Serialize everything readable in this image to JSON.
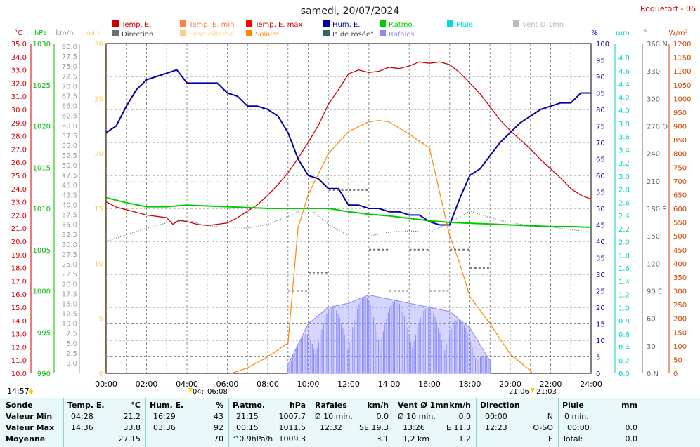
{
  "title": "samedi, 20/07/2024",
  "station": "Roquefort - 06",
  "legend": [
    {
      "label": "Temp. E.",
      "color": "#cc0000"
    },
    {
      "label": "Temp. E. min",
      "color": "#ff8040"
    },
    {
      "label": "Temp. E. max",
      "color": "#ff0000"
    },
    {
      "label": "Hum. E.",
      "color": "#0000aa"
    },
    {
      "label": "P.atmo.",
      "color": "#00cc00"
    },
    {
      "label": "Pluie",
      "color": "#00dddd"
    },
    {
      "label": "Vent Ø 1mn",
      "color": "#bbbbbb"
    },
    {
      "label": "Direction",
      "color": "#707070"
    },
    {
      "label": "Ensoleilleme",
      "color": "#ffcc88"
    },
    {
      "label": "Solaire",
      "color": "#ff8800"
    },
    {
      "label": "P. de rosée°",
      "color": "#336666"
    },
    {
      "label": "Rafales",
      "color": "#8888ff"
    }
  ],
  "axes": {
    "temp": {
      "unit": "°C",
      "color": "#cc0000",
      "ticks": [
        "35.0",
        "34.0",
        "33.0",
        "32.0",
        "31.0",
        "30.0",
        "29.0",
        "28.0",
        "27.0",
        "26.0",
        "25.0",
        "24.0",
        "23.0",
        "22.0",
        "21.0",
        "20.0",
        "19.0",
        "18.0",
        "17.0",
        "16.0",
        "15.0",
        "14.0",
        "13.0",
        "12.0",
        "11.0",
        "10.0"
      ]
    },
    "hpa": {
      "unit": "hPa",
      "color": "#00bb00",
      "ticks": [
        "1030",
        "1025",
        "1020",
        "1015",
        "1010",
        "1005",
        "1000",
        "995",
        "990"
      ]
    },
    "kmh": {
      "unit": "km/h",
      "color": "#999999",
      "ticks": [
        "80.0",
        "77.5",
        "75.0",
        "72.5",
        "70.0",
        "67.5",
        "65.0",
        "62.5",
        "60.0",
        "57.5",
        "55.0",
        "52.5",
        "50.0",
        "47.5",
        "45.0",
        "42.5",
        "40.0",
        "37.5",
        "35.0",
        "32.5",
        "30.0",
        "27.5",
        "25.0",
        "22.5",
        "20.0",
        "17.5",
        "15.0",
        "12.5",
        "10.0",
        "7.5",
        "5.0",
        "2.5",
        "0.0"
      ]
    },
    "min": {
      "unit": "min",
      "color": "#ffcc66",
      "ticks": [
        "30",
        "25",
        "20",
        "15",
        "10",
        "5",
        "0"
      ]
    },
    "pct": {
      "unit": "%",
      "color": "#0000aa",
      "ticks": [
        "100",
        "95",
        "90",
        "85",
        "80",
        "75",
        "70",
        "65",
        "60",
        "55",
        "50",
        "45",
        "40",
        "35",
        "30",
        "25",
        "20",
        "15",
        "10",
        "5",
        "0"
      ]
    },
    "mm": {
      "unit": "mm",
      "color": "#00cccc",
      "ticks": [
        "4.8",
        "4.6",
        "4.4",
        "4.2",
        "4.0",
        "3.8",
        "3.6",
        "3.4",
        "3.2",
        "3.0",
        "2.8",
        "2.6",
        "2.4",
        "2.2",
        "2.0",
        "1.8",
        "1.6",
        "1.4",
        "1.2",
        "1.0",
        "0.8",
        "0.6",
        "0.4",
        "0.2",
        "0.0"
      ]
    },
    "deg": {
      "unit": "°",
      "color": "#666666",
      "ticks": [
        "360 N",
        "330",
        "300",
        "270 O",
        "240",
        "210",
        "180 S",
        "150",
        "120",
        "90 E",
        "60",
        "30",
        "0 N"
      ]
    },
    "wm2": {
      "unit": "W/m²",
      "color": "#cc4400",
      "ticks": [
        "1200",
        "1150",
        "1100",
        "1050",
        "1000",
        "950",
        "900",
        "850",
        "800",
        "750",
        "700",
        "650",
        "600",
        "550",
        "500",
        "450",
        "400",
        "350",
        "300",
        "250",
        "200",
        "150",
        "100",
        "50",
        "0"
      ]
    },
    "time": [
      "00:00",
      "02:00",
      "04:00",
      "06:00",
      "08:00",
      "10:00",
      "12:00",
      "14:00",
      "16:00",
      "18:00",
      "20:00",
      "22:00",
      "24:00"
    ]
  },
  "bottom_labels": {
    "now": "14:57",
    "sunrise_a": "04:",
    "sunrise_b": "06:08",
    "sunset_a": "21:06",
    "sunset_b": "21:03"
  },
  "chart_data": {
    "type": "line",
    "x_unit": "hours",
    "xlim": [
      0,
      24
    ],
    "series": [
      {
        "name": "Temp. E.",
        "axis": "°C",
        "ylim": [
          10,
          35
        ],
        "x": [
          0,
          0.5,
          1,
          1.5,
          2,
          2.5,
          3,
          3.3,
          3.6,
          4,
          4.5,
          5,
          5.5,
          6,
          6.5,
          7,
          7.5,
          8,
          8.5,
          9,
          9.5,
          10,
          10.5,
          11,
          11.5,
          12,
          12.5,
          13,
          13.5,
          14,
          14.5,
          15,
          15.5,
          16,
          16.5,
          17,
          17.5,
          18,
          18.5,
          19,
          19.5,
          20,
          20.5,
          21,
          21.5,
          22,
          22.5,
          23,
          23.5,
          24
        ],
        "y": [
          23.0,
          22.6,
          22.4,
          22.2,
          22.0,
          21.9,
          21.8,
          21.3,
          21.6,
          21.5,
          21.3,
          21.2,
          21.3,
          21.4,
          21.8,
          22.3,
          22.8,
          23.5,
          24.3,
          25.2,
          26.3,
          27.5,
          28.8,
          30.4,
          31.5,
          32.7,
          33.0,
          32.8,
          32.9,
          33.2,
          33.1,
          33.3,
          33.6,
          33.5,
          33.6,
          33.4,
          32.8,
          32.0,
          31.2,
          30.2,
          29.2,
          28.4,
          27.7,
          27.0,
          26.2,
          25.5,
          24.8,
          24.0,
          23.5,
          23.2
        ]
      },
      {
        "name": "Hum. E.",
        "axis": "%",
        "ylim": [
          0,
          100
        ],
        "x": [
          0,
          0.5,
          1,
          1.5,
          2,
          2.5,
          3,
          3.5,
          4,
          4.5,
          5,
          5.5,
          6,
          6.5,
          7,
          7.5,
          8,
          8.5,
          9,
          9.5,
          10,
          10.5,
          11,
          11.5,
          12,
          12.5,
          13,
          13.5,
          14,
          14.5,
          15,
          15.5,
          16,
          16.5,
          17,
          17.5,
          18,
          18.5,
          19,
          19.5,
          20,
          20.5,
          21,
          21.5,
          22,
          22.5,
          23,
          23.5,
          24
        ],
        "y": [
          73,
          75,
          81,
          86,
          89,
          90,
          91,
          92,
          88,
          88,
          88,
          88,
          85,
          84,
          81,
          81,
          80,
          78,
          73,
          65,
          60,
          59,
          56,
          56,
          51,
          51,
          50,
          50,
          49,
          49,
          48,
          48,
          46,
          45,
          45,
          53,
          60,
          62,
          66,
          70,
          73,
          76,
          78,
          80,
          81,
          82,
          82,
          85,
          85
        ]
      },
      {
        "name": "P.atmo.",
        "axis": "hPa",
        "ylim": [
          990,
          1030
        ],
        "x": [
          0,
          1,
          2,
          3,
          4,
          5,
          6,
          7,
          8,
          9,
          10,
          11,
          12,
          13,
          14,
          15,
          16,
          17,
          18,
          19,
          20,
          21,
          22,
          23,
          24
        ],
        "y": [
          1011.3,
          1010.7,
          1010.2,
          1010.2,
          1010.4,
          1010.3,
          1010.2,
          1010.1,
          1010.0,
          1010.0,
          1010.0,
          1010.0,
          1009.6,
          1009.3,
          1009.1,
          1008.8,
          1008.5,
          1008.3,
          1008.2,
          1008.1,
          1008.0,
          1007.9,
          1007.8,
          1007.8,
          1007.7
        ]
      },
      {
        "name": "P. de rosée°",
        "axis": "°C",
        "ylim": [
          10,
          35
        ],
        "x": [
          0,
          1,
          2,
          3,
          4,
          5,
          6,
          7,
          8,
          9,
          10,
          11,
          12,
          13,
          14,
          15,
          16,
          17,
          18,
          19,
          20,
          21,
          22,
          23,
          24
        ],
        "y": [
          20.0,
          20.5,
          21.0,
          21.4,
          21.6,
          21.2,
          21.1,
          21.0,
          21.3,
          21.9,
          22.6,
          21.3,
          20.4,
          20.4,
          20.7,
          20.8,
          20.7,
          21.4,
          22.3,
          21.8,
          21.4,
          21.2,
          21.1,
          20.9,
          20.7
        ]
      },
      {
        "name": "Solaire",
        "axis": "W/m²",
        "ylim": [
          0,
          1200
        ],
        "x": [
          6.2,
          7,
          8,
          9,
          9.5,
          10,
          11,
          12,
          13,
          13.5,
          14,
          15,
          16,
          17,
          17.5,
          18,
          19,
          20,
          21,
          21.1
        ],
        "y": [
          0,
          20,
          60,
          110,
          530,
          650,
          800,
          880,
          915,
          920,
          915,
          870,
          820,
          500,
          400,
          280,
          180,
          70,
          10,
          0
        ]
      },
      {
        "name": "Rafales",
        "axis": "km/h",
        "ylim": [
          0,
          80
        ],
        "x": [
          9,
          10,
          11,
          12,
          13,
          14,
          15,
          16,
          17,
          18,
          19
        ],
        "y": [
          2,
          12,
          16,
          17,
          19,
          18,
          17,
          16,
          15,
          11,
          3
        ]
      },
      {
        "name": "Direction",
        "axis": "°",
        "ylim": [
          0,
          360
        ],
        "x": [
          9.5,
          10.5,
          11.5,
          12.5,
          13.5,
          14.5,
          15.5,
          16.5,
          17.5,
          18.5
        ],
        "y": [
          90,
          110,
          200,
          200,
          135,
          90,
          135,
          90,
          135,
          115
        ]
      }
    ],
    "reference_line": {
      "axis": "°C",
      "value": 24.5,
      "color": "#009900"
    }
  },
  "stats": {
    "headers": [
      "Sonde",
      "Temp. E.",
      "°C",
      "Hum. E.",
      "%",
      "P.atmo.",
      "hPa",
      "Rafales",
      "km/h",
      "Vent Ø 1mn",
      "km/h",
      "Direction",
      "Pluie",
      "mm"
    ],
    "row_labels": [
      "Valeur Min",
      "Valeur Max",
      "Moyenne"
    ],
    "temp": [
      [
        "04:28",
        "21.2"
      ],
      [
        "14:36",
        "33.8"
      ],
      [
        "",
        "27.15"
      ]
    ],
    "hum": [
      [
        "16:29",
        "43"
      ],
      [
        "03:36",
        "92"
      ],
      [
        "",
        "70"
      ]
    ],
    "patmo": [
      [
        "21:15",
        "1007.7"
      ],
      [
        "00:15",
        "1011.5"
      ],
      [
        "^0.9hPa/h",
        "1009.3"
      ]
    ],
    "rafales": [
      [
        "Ø 10 min.",
        "0.0"
      ],
      [
        "12:32",
        "SE 19.3"
      ],
      [
        "",
        "3.1"
      ]
    ],
    "vent": [
      [
        "Ø 10 min.",
        "0.0"
      ],
      [
        "13:26",
        "E 11.3"
      ],
      [
        "1,2 km",
        "1.2"
      ]
    ],
    "direction": [
      [
        "00:00",
        "N"
      ],
      [
        "12:23",
        "O-SO"
      ],
      [
        "",
        "E"
      ]
    ],
    "pluie": [
      [
        "0 min.",
        ""
      ],
      [
        "00:00",
        "0.0"
      ],
      [
        "Total:",
        "0.0"
      ]
    ]
  }
}
